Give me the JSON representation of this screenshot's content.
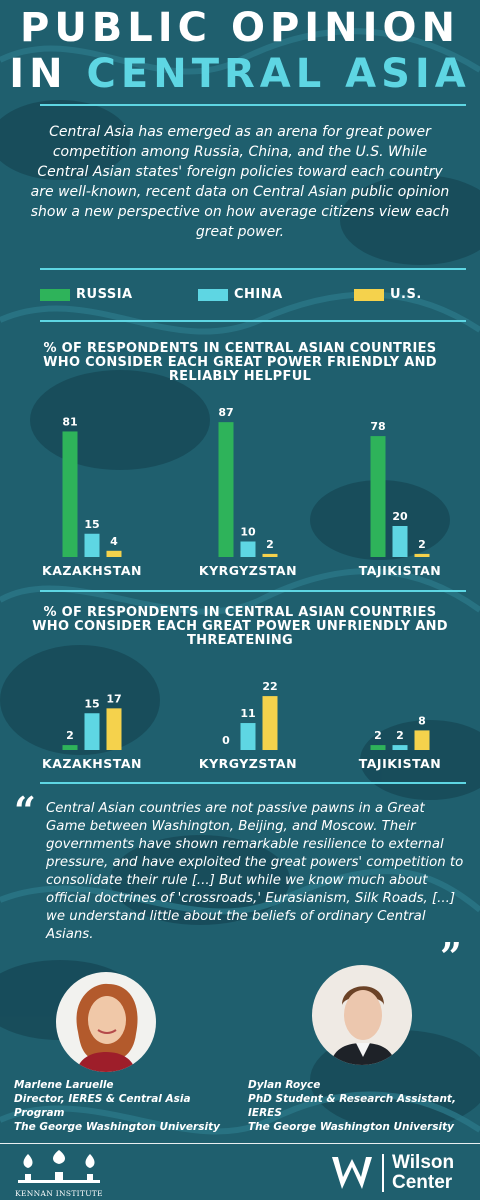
{
  "title": {
    "line1": "PUBLIC OPINION",
    "line2_prefix": "IN",
    "line2_accent": "CENTRAL ASIA"
  },
  "intro": "Central Asia has emerged as an arena for great power competition among Russia, China, and the U.S. While Central Asian states' foreign policies toward each country are well-known, recent data on Central Asian public opinion show a new perspective on how average citizens view each great power.",
  "colors": {
    "background": "#1f5f6e",
    "accent": "#5ed6e3",
    "russia": "#2eb35a",
    "china": "#5ed6e3",
    "us": "#f5d24c"
  },
  "legend": [
    {
      "label": "RUSSIA",
      "color": "#2eb35a"
    },
    {
      "label": "CHINA",
      "color": "#5ed6e3"
    },
    {
      "label": "U.S.",
      "color": "#f5d24c"
    }
  ],
  "chart_data": [
    {
      "type": "bar",
      "title": "% OF RESPONDENTS IN CENTRAL ASIAN COUNTRIES WHO CONSIDER EACH GREAT POWER FRIENDLY AND RELIABLY HELPFUL",
      "categories": [
        "KAZAKHSTAN",
        "KYRGYZSTAN",
        "TAJIKISTAN"
      ],
      "series": [
        {
          "name": "RUSSIA",
          "values": [
            81,
            87,
            78
          ]
        },
        {
          "name": "CHINA",
          "values": [
            15,
            10,
            20
          ]
        },
        {
          "name": "U.S.",
          "values": [
            4,
            2,
            2
          ]
        }
      ],
      "ylim": [
        0,
        100
      ],
      "grid": false,
      "legend": "top"
    },
    {
      "type": "bar",
      "title": "% OF RESPONDENTS IN CENTRAL ASIAN COUNTRIES WHO CONSIDER EACH GREAT POWER UNFRIENDLY AND THREATENING",
      "categories": [
        "KAZAKHSTAN",
        "KYRGYZSTAN",
        "TAJIKISTAN"
      ],
      "series": [
        {
          "name": "RUSSIA",
          "values": [
            2,
            0,
            2
          ]
        },
        {
          "name": "CHINA",
          "values": [
            15,
            11,
            2
          ]
        },
        {
          "name": "U.S.",
          "values": [
            17,
            22,
            8
          ]
        }
      ],
      "ylim": [
        0,
        100
      ],
      "grid": false,
      "legend": "top"
    }
  ],
  "quote": {
    "open_mark": "“",
    "close_mark": "”",
    "text": "Central Asian countries are not passive pawns in a Great Game between Washington, Beijing, and Moscow. Their governments have shown remarkable resilience to external pressure, and have exploited the great powers' competition to consolidate their rule [...] But while we know much about official doctrines of 'crossroads,' Eurasianism, Silk Roads, [...] we understand little about the beliefs of ordinary Central Asians."
  },
  "authors": [
    {
      "name": "Marlene Laruelle",
      "role": "Director, IERES & Central Asia Program",
      "affiliation": "The George Washington University"
    },
    {
      "name": "Dylan Royce",
      "role": "PhD Student & Research Assistant, IERES",
      "affiliation": "The George Washington University"
    }
  ],
  "footer": {
    "left_logo": "KENNAN INSTITUTE",
    "right_logo_line1": "Wilson",
    "right_logo_line2": "Center"
  }
}
